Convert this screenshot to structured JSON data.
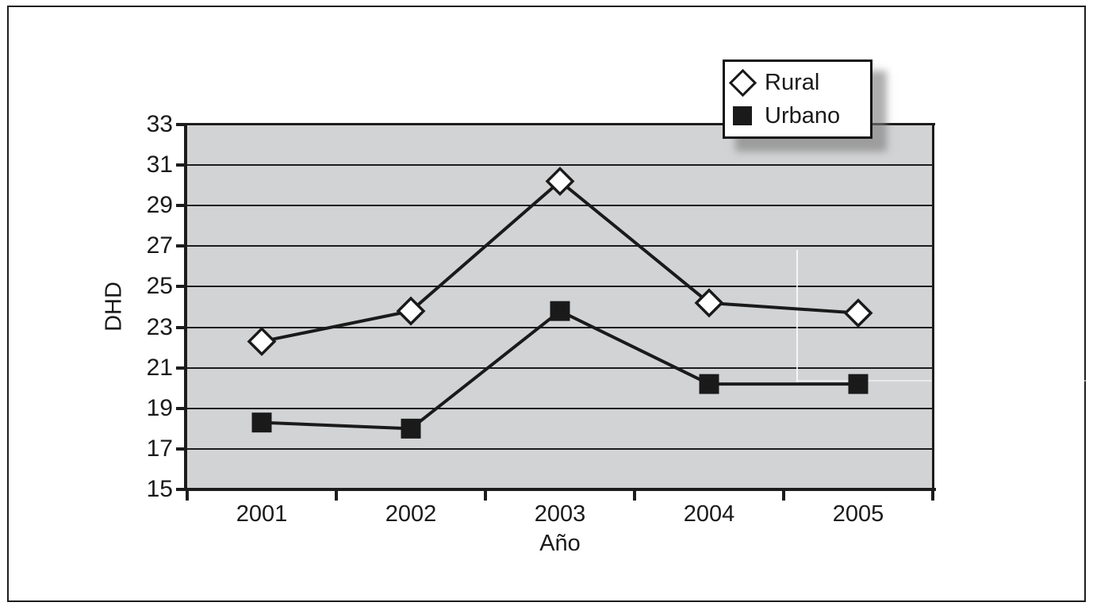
{
  "chart_data": {
    "type": "line",
    "categories": [
      "2001",
      "2002",
      "2003",
      "2004",
      "2005"
    ],
    "series": [
      {
        "name": "Rural",
        "marker": "diamond",
        "marker_fill": "#ffffff",
        "values": [
          22.3,
          23.8,
          30.2,
          24.2,
          23.7
        ]
      },
      {
        "name": "Urbano",
        "marker": "square",
        "marker_fill": "#1a1a1a",
        "values": [
          18.3,
          18.0,
          23.8,
          20.2,
          20.2
        ]
      }
    ],
    "title": "",
    "xlabel": "Año",
    "ylabel": "DHD",
    "ylim": [
      15,
      33
    ],
    "yticks": [
      33,
      31,
      29,
      27,
      25,
      23,
      21,
      19,
      17,
      15
    ],
    "grid": true,
    "gridline_color": "#1c1c1c",
    "line_color": "#1a1a1a",
    "plot_bg": "#d2d3d4",
    "legend_position": "top-right",
    "legend_labels": [
      "Rural",
      "Urbano"
    ]
  }
}
